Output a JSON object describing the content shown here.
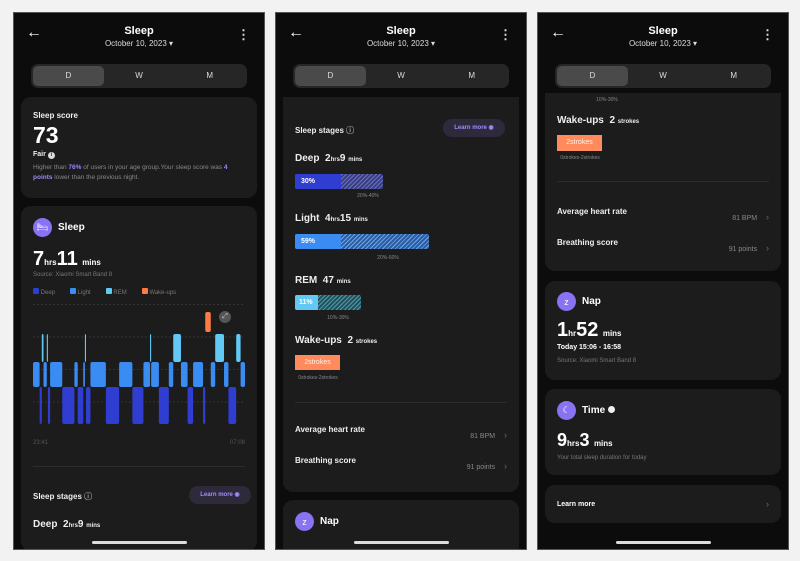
{
  "header": {
    "title": "Sleep",
    "date": "October 10, 2023"
  },
  "tabs": [
    "D",
    "W",
    "M"
  ],
  "score": {
    "label": "Sleep score",
    "value": "73",
    "rating": "Fair",
    "desc_1": "Higher than ",
    "pct": "76%",
    "desc_2": " of users in your age group.Your sleep score was ",
    "points": "4 points",
    "desc_3": " lower than the previous night."
  },
  "sleep": {
    "title": "Sleep",
    "hours": "7",
    "hours_unit": "hrs",
    "mins": "11",
    "mins_unit": "mins",
    "source": "Source: Xiaomi Smart Band 8"
  },
  "chart_data": {
    "type": "hypnogram",
    "legend": [
      "Deep",
      "Light",
      "REM",
      "Wake-ups"
    ],
    "colors": {
      "Deep": "#2f3ed0",
      "Light": "#3b8cf2",
      "REM": "#62c9f6",
      "Wake-ups": "#ff7b45"
    },
    "x_start": "23:41",
    "x_end": "07:08",
    "segments": [
      [
        "Light",
        12
      ],
      [
        "Deep",
        4
      ],
      [
        "REM",
        3
      ],
      [
        "Light",
        6
      ],
      [
        "REM",
        2
      ],
      [
        "Deep",
        4
      ],
      [
        "Light",
        22
      ],
      [
        "Deep",
        22
      ],
      [
        "Light",
        6
      ],
      [
        "Deep",
        10
      ],
      [
        "Light",
        3
      ],
      [
        "REM",
        2
      ],
      [
        "Deep",
        8
      ],
      [
        "Light",
        28
      ],
      [
        "Deep",
        24
      ],
      [
        "Light",
        24
      ],
      [
        "Deep",
        20
      ],
      [
        "Light",
        12
      ],
      [
        "REM",
        2
      ],
      [
        "Light",
        14
      ],
      [
        "Deep",
        18
      ],
      [
        "Light",
        8
      ],
      [
        "REM",
        14
      ],
      [
        "Light",
        12
      ],
      [
        "Deep",
        10
      ],
      [
        "Light",
        18
      ],
      [
        "Deep",
        4
      ],
      [
        "Wake-ups",
        10
      ],
      [
        "Light",
        8
      ],
      [
        "REM",
        16
      ],
      [
        "Light",
        8
      ],
      [
        "Deep",
        14
      ],
      [
        "REM",
        8
      ],
      [
        "Light",
        8
      ]
    ]
  },
  "stages": {
    "title": "Sleep stages",
    "learn_more": "Learn more",
    "deep": {
      "name": "Deep",
      "h": "2",
      "hu": "hrs",
      "m": "9",
      "mu": "mins",
      "pct": "30%",
      "range": "20%-40%",
      "color": "#2f3ed0",
      "fraction": 0.3
    },
    "light": {
      "name": "Light",
      "h": "4",
      "hu": "hrs",
      "m": "15",
      "mu": "mins",
      "pct": "59%",
      "range": "20%-60%",
      "color": "#3b8cf2",
      "fraction": 0.59
    },
    "rem": {
      "name": "REM",
      "m": "47",
      "mu": "mins",
      "pct": "11%",
      "range": "10%-30%",
      "color": "#62c9f6",
      "fraction": 0.11
    },
    "wake": {
      "name": "Wake-ups",
      "n": "2",
      "nu": "strokes",
      "box": "2strokes",
      "range": "0strokes-2strokes",
      "color": "#ff8a5c"
    }
  },
  "metrics": {
    "hr_label": "Average heart rate",
    "hr_value": "81 BPM",
    "br_label": "Breathing score",
    "br_value": "91 points"
  },
  "nap": {
    "title": "Nap",
    "h": "1",
    "hu": "hr",
    "m": "52",
    "mu": "mins",
    "time": "Today 15:06 - 16:58",
    "source": "Source: Xiaomi Smart Band 8"
  },
  "time": {
    "title": "Time",
    "h": "9",
    "hu": "hrs",
    "m": "3",
    "mu": "mins",
    "desc": "Your total sleep duration for today"
  },
  "learn_more_card": "Learn more"
}
